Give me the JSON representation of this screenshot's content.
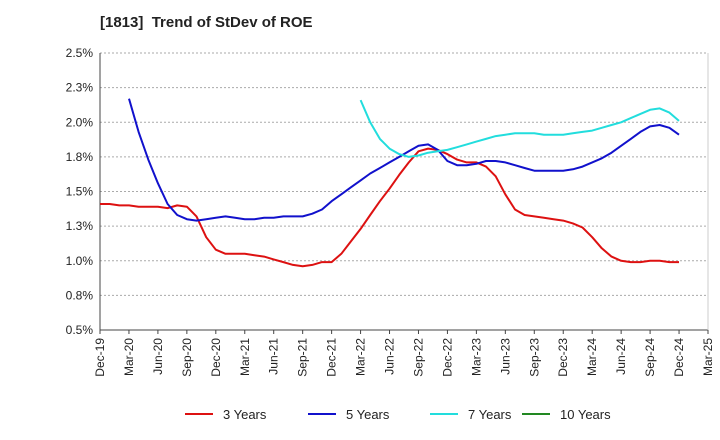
{
  "title": "[1813]  Trend of StDev of ROE",
  "chart_data": {
    "type": "line",
    "title": "[1813]  Trend of StDev of ROE",
    "xlabel": "",
    "ylabel": "",
    "x_ticks": [
      "Dec-19",
      "Mar-20",
      "Jun-20",
      "Sep-20",
      "Dec-20",
      "Mar-21",
      "Jun-21",
      "Sep-21",
      "Dec-21",
      "Mar-22",
      "Jun-22",
      "Sep-22",
      "Dec-22",
      "Mar-23",
      "Jun-23",
      "Sep-23",
      "Dec-23",
      "Mar-24",
      "Jun-24",
      "Sep-24",
      "Dec-24",
      "Mar-25"
    ],
    "y_ticks": [
      "0.5%",
      "0.8%",
      "1.0%",
      "1.3%",
      "1.5%",
      "1.8%",
      "2.0%",
      "2.3%",
      "2.5%"
    ],
    "ylim": [
      0.5,
      2.5
    ],
    "grid": "horizontal dashed",
    "legend_position": "bottom",
    "series": [
      {
        "name": "3 Years",
        "color": "#dd1111",
        "points": [
          [
            "Dec-19",
            1.41
          ],
          [
            "Jan-20",
            1.41
          ],
          [
            "Feb-20",
            1.4
          ],
          [
            "Mar-20",
            1.4
          ],
          [
            "Apr-20",
            1.39
          ],
          [
            "May-20",
            1.39
          ],
          [
            "Jun-20",
            1.39
          ],
          [
            "Jul-20",
            1.38
          ],
          [
            "Aug-20",
            1.4
          ],
          [
            "Sep-20",
            1.39
          ],
          [
            "Oct-20",
            1.32
          ],
          [
            "Nov-20",
            1.17
          ],
          [
            "Dec-20",
            1.08
          ],
          [
            "Jan-21",
            1.05
          ],
          [
            "Feb-21",
            1.05
          ],
          [
            "Mar-21",
            1.05
          ],
          [
            "Apr-21",
            1.04
          ],
          [
            "May-21",
            1.03
          ],
          [
            "Jun-21",
            1.01
          ],
          [
            "Jul-21",
            0.99
          ],
          [
            "Aug-21",
            0.97
          ],
          [
            "Sep-21",
            0.96
          ],
          [
            "Oct-21",
            0.97
          ],
          [
            "Nov-21",
            0.99
          ],
          [
            "Dec-21",
            0.99
          ],
          [
            "Jan-22",
            1.05
          ],
          [
            "Feb-22",
            1.14
          ],
          [
            "Mar-22",
            1.23
          ],
          [
            "Apr-22",
            1.33
          ],
          [
            "May-22",
            1.43
          ],
          [
            "Jun-22",
            1.52
          ],
          [
            "Jul-22",
            1.62
          ],
          [
            "Aug-22",
            1.71
          ],
          [
            "Sep-22",
            1.79
          ],
          [
            "Oct-22",
            1.81
          ],
          [
            "Nov-22",
            1.8
          ],
          [
            "Dec-22",
            1.77
          ],
          [
            "Jan-23",
            1.73
          ],
          [
            "Feb-23",
            1.71
          ],
          [
            "Mar-23",
            1.71
          ],
          [
            "Apr-23",
            1.68
          ],
          [
            "May-23",
            1.61
          ],
          [
            "Jun-23",
            1.48
          ],
          [
            "Jul-23",
            1.37
          ],
          [
            "Aug-23",
            1.33
          ],
          [
            "Sep-23",
            1.32
          ],
          [
            "Oct-23",
            1.31
          ],
          [
            "Nov-23",
            1.3
          ],
          [
            "Dec-23",
            1.29
          ],
          [
            "Jan-24",
            1.27
          ],
          [
            "Feb-24",
            1.24
          ],
          [
            "Mar-24",
            1.17
          ],
          [
            "Apr-24",
            1.09
          ],
          [
            "May-24",
            1.03
          ],
          [
            "Jun-24",
            1.0
          ],
          [
            "Jul-24",
            0.99
          ],
          [
            "Aug-24",
            0.99
          ],
          [
            "Sep-24",
            1.0
          ],
          [
            "Oct-24",
            1.0
          ],
          [
            "Nov-24",
            0.99
          ],
          [
            "Dec-24",
            0.99
          ]
        ]
      },
      {
        "name": "5 Years",
        "color": "#1111cc",
        "points": [
          [
            "Mar-20",
            2.17
          ],
          [
            "Apr-20",
            1.93
          ],
          [
            "May-20",
            1.73
          ],
          [
            "Jun-20",
            1.56
          ],
          [
            "Jul-20",
            1.41
          ],
          [
            "Aug-20",
            1.33
          ],
          [
            "Sep-20",
            1.3
          ],
          [
            "Oct-20",
            1.29
          ],
          [
            "Nov-20",
            1.3
          ],
          [
            "Dec-20",
            1.31
          ],
          [
            "Jan-21",
            1.32
          ],
          [
            "Feb-21",
            1.31
          ],
          [
            "Mar-21",
            1.3
          ],
          [
            "Apr-21",
            1.3
          ],
          [
            "May-21",
            1.31
          ],
          [
            "Jun-21",
            1.31
          ],
          [
            "Jul-21",
            1.32
          ],
          [
            "Aug-21",
            1.32
          ],
          [
            "Sep-21",
            1.32
          ],
          [
            "Oct-21",
            1.34
          ],
          [
            "Nov-21",
            1.37
          ],
          [
            "Dec-21",
            1.43
          ],
          [
            "Jan-22",
            1.48
          ],
          [
            "Feb-22",
            1.53
          ],
          [
            "Mar-22",
            1.58
          ],
          [
            "Apr-22",
            1.63
          ],
          [
            "May-22",
            1.67
          ],
          [
            "Jun-22",
            1.71
          ],
          [
            "Jul-22",
            1.75
          ],
          [
            "Aug-22",
            1.79
          ],
          [
            "Sep-22",
            1.83
          ],
          [
            "Oct-22",
            1.84
          ],
          [
            "Nov-22",
            1.8
          ],
          [
            "Dec-22",
            1.72
          ],
          [
            "Jan-23",
            1.69
          ],
          [
            "Feb-23",
            1.69
          ],
          [
            "Mar-23",
            1.7
          ],
          [
            "Apr-23",
            1.72
          ],
          [
            "May-23",
            1.72
          ],
          [
            "Jun-23",
            1.71
          ],
          [
            "Jul-23",
            1.69
          ],
          [
            "Aug-23",
            1.67
          ],
          [
            "Sep-23",
            1.65
          ],
          [
            "Oct-23",
            1.65
          ],
          [
            "Nov-23",
            1.65
          ],
          [
            "Dec-23",
            1.65
          ],
          [
            "Jan-24",
            1.66
          ],
          [
            "Feb-24",
            1.68
          ],
          [
            "Mar-24",
            1.71
          ],
          [
            "Apr-24",
            1.74
          ],
          [
            "May-24",
            1.78
          ],
          [
            "Jun-24",
            1.83
          ],
          [
            "Jul-24",
            1.88
          ],
          [
            "Aug-24",
            1.93
          ],
          [
            "Sep-24",
            1.97
          ],
          [
            "Oct-24",
            1.98
          ],
          [
            "Nov-24",
            1.96
          ],
          [
            "Dec-24",
            1.91
          ]
        ]
      },
      {
        "name": "7 Years",
        "color": "#22dddd",
        "points": [
          [
            "Mar-22",
            2.16
          ],
          [
            "Apr-22",
            2.0
          ],
          [
            "May-22",
            1.88
          ],
          [
            "Jun-22",
            1.81
          ],
          [
            "Jul-22",
            1.77
          ],
          [
            "Aug-22",
            1.75
          ],
          [
            "Sep-22",
            1.76
          ],
          [
            "Oct-22",
            1.78
          ],
          [
            "Nov-22",
            1.79
          ],
          [
            "Dec-22",
            1.8
          ],
          [
            "Jan-23",
            1.82
          ],
          [
            "Feb-23",
            1.84
          ],
          [
            "Mar-23",
            1.86
          ],
          [
            "Apr-23",
            1.88
          ],
          [
            "May-23",
            1.9
          ],
          [
            "Jun-23",
            1.91
          ],
          [
            "Jul-23",
            1.92
          ],
          [
            "Aug-23",
            1.92
          ],
          [
            "Sep-23",
            1.92
          ],
          [
            "Oct-23",
            1.91
          ],
          [
            "Nov-23",
            1.91
          ],
          [
            "Dec-23",
            1.91
          ],
          [
            "Jan-24",
            1.92
          ],
          [
            "Feb-24",
            1.93
          ],
          [
            "Mar-24",
            1.94
          ],
          [
            "Apr-24",
            1.96
          ],
          [
            "May-24",
            1.98
          ],
          [
            "Jun-24",
            2.0
          ],
          [
            "Jul-24",
            2.03
          ],
          [
            "Aug-24",
            2.06
          ],
          [
            "Sep-24",
            2.09
          ],
          [
            "Oct-24",
            2.1
          ],
          [
            "Nov-24",
            2.07
          ],
          [
            "Dec-24",
            2.01
          ]
        ]
      },
      {
        "name": "10 Years",
        "color": "#228822",
        "points": []
      }
    ]
  }
}
